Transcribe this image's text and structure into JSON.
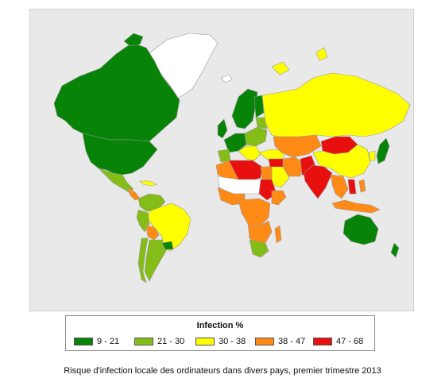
{
  "legend": {
    "title": "Infection %",
    "bins": [
      {
        "label": "9 - 21",
        "color": "#078307"
      },
      {
        "label": "21 - 30",
        "color": "#84bd17"
      },
      {
        "label": "30 - 38",
        "color": "#ffff00"
      },
      {
        "label": "38 - 47",
        "color": "#ff8a15"
      },
      {
        "label": "47 - 68",
        "color": "#e80f0f"
      }
    ]
  },
  "colors": {
    "ocean": "#e9e9e9",
    "no_data": "#ffffff",
    "border": "#9a9a9a"
  },
  "caption": "Risque d'infection locale des ordinateurs dans divers pays, premier trimestre 2013"
}
